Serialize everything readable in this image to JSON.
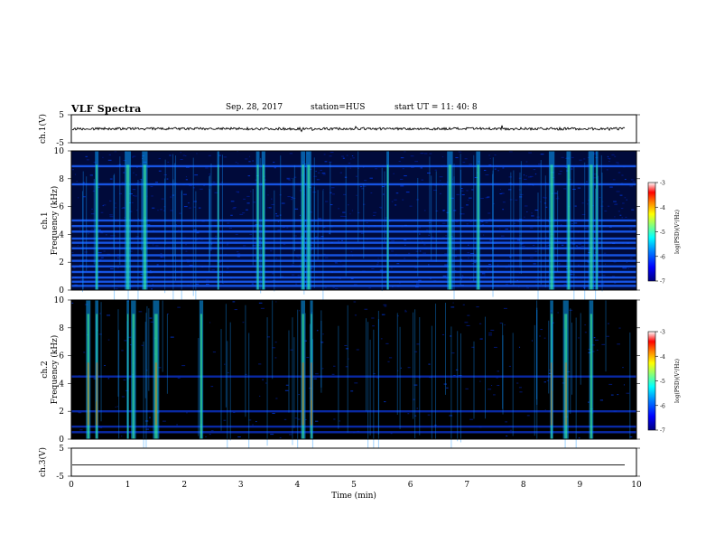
{
  "header": {
    "title": "VLF Spectra",
    "date": "Sep. 28, 2017",
    "station": "station=HUS",
    "start_ut": "start UT =  11: 40: 8"
  },
  "colors": {
    "background": "#000000",
    "colormap": [
      "#00007f",
      "#0000ff",
      "#0080ff",
      "#00ffff",
      "#80ff80",
      "#ffff00",
      "#ff8000",
      "#ff0000",
      "#ffffff"
    ]
  },
  "chart_data": [
    {
      "type": "line",
      "ylabel": "ch.1(V)",
      "ylim": [
        -5,
        5
      ],
      "yticks": [
        "5",
        "-5"
      ],
      "xlim": [
        0,
        10
      ],
      "signal": "noisy waveform near 0 V"
    },
    {
      "type": "heatmap",
      "ylabel": "ch.1\nFrequency (kHz)",
      "ylim": [
        0,
        10
      ],
      "yticks": [
        "0",
        "2",
        "4",
        "6",
        "8",
        "10"
      ],
      "xlim": [
        0,
        10
      ],
      "colorbar": {
        "label": "log(PSD)(V²/Hz)",
        "range": [
          -7,
          -3
        ],
        "ticks": [
          "-3",
          "-4",
          "-5",
          "-6",
          "-7"
        ]
      },
      "horizontal_bands_khz": [
        0.3,
        0.6,
        0.9,
        1.3,
        1.7,
        2.1,
        2.5,
        3.0,
        3.4,
        3.7,
        4.2,
        4.6,
        5.0,
        7.6,
        8.9
      ],
      "vertical_bursts_min": [
        0.45,
        1.0,
        1.3,
        2.6,
        3.3,
        3.4,
        4.1,
        4.2,
        5.6,
        6.7,
        7.2,
        8.5,
        8.8,
        9.2,
        9.3
      ]
    },
    {
      "type": "heatmap",
      "ylabel": "ch.2\nFrequency (kHz)",
      "ylim": [
        0,
        10
      ],
      "yticks": [
        "0",
        "2",
        "4",
        "6",
        "8",
        "10"
      ],
      "xlim": [
        0,
        10
      ],
      "colorbar": {
        "label": "log(PSD)(V²/Hz)",
        "range": [
          -7,
          -3
        ],
        "ticks": [
          "-3",
          "-4",
          "-5",
          "-6",
          "-7"
        ]
      },
      "horizontal_bands_khz": [
        0.5,
        0.9,
        2.0,
        4.5
      ],
      "vertical_bursts_min": [
        0.3,
        0.45,
        1.0,
        1.1,
        1.5,
        2.3,
        4.1,
        4.25,
        8.5,
        8.75,
        9.2
      ]
    },
    {
      "type": "line",
      "ylabel": "ch.3(V)",
      "ylim": [
        -5,
        5
      ],
      "yticks": [
        "5",
        "-5"
      ],
      "xlim": [
        0,
        10
      ],
      "xlabel": "Time (min)",
      "xticks": [
        "0",
        "1",
        "2",
        "3",
        "4",
        "5",
        "6",
        "7",
        "8",
        "9",
        "10"
      ],
      "signal": "flat line at about -1 V"
    }
  ]
}
